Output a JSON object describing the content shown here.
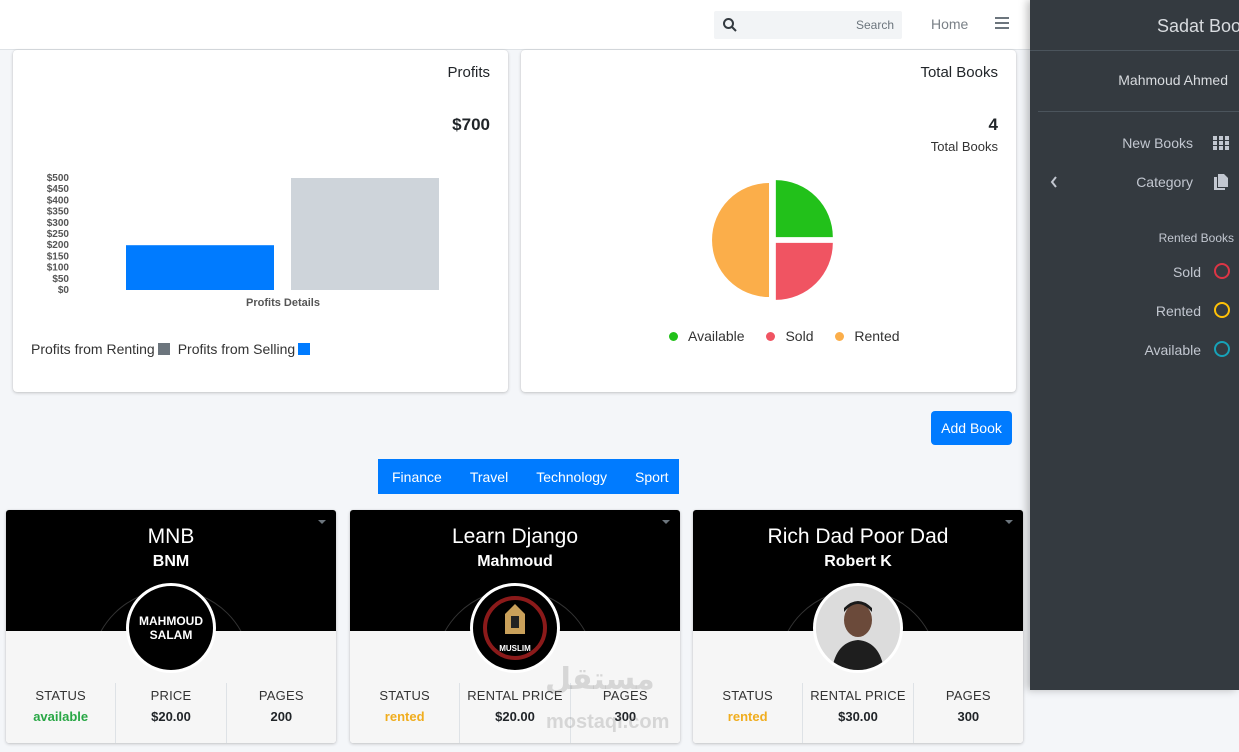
{
  "navbar": {
    "search_placeholder": "Search",
    "home_label": "Home",
    "menu_icon": "hamburger-icon"
  },
  "sidebar": {
    "brand": "Sadat Book",
    "user": "Mahmoud Ahmed",
    "items": [
      {
        "label": "New Books",
        "icon": "grid-icon"
      },
      {
        "label": "Category",
        "icon": "file-icon"
      }
    ],
    "header": "Rented Books",
    "status_items": [
      {
        "label": "Sold",
        "color": "#dc3545"
      },
      {
        "label": "Rented",
        "color": "#ffc107"
      },
      {
        "label": "Available",
        "color": "#17a2b8"
      }
    ]
  },
  "profits_card": {
    "title": "Profits",
    "value": "$700",
    "legend": [
      {
        "label": "Profits from Renting",
        "color": "#6c757d"
      },
      {
        "label": "Profits from Selling",
        "color": "#007bff"
      }
    ]
  },
  "total_card": {
    "title": "Total Books",
    "value": "4",
    "sub": "Total Books",
    "legend": [
      {
        "label": "Available",
        "color": "#22c11a"
      },
      {
        "label": "Sold",
        "color": "#f05462"
      },
      {
        "label": "Rented",
        "color": "#fbae4a"
      }
    ]
  },
  "chart_data": [
    {
      "type": "bar",
      "xlabel": "Profits Details",
      "ylabel": "",
      "categories": [
        "",
        ""
      ],
      "values": [
        200,
        500
      ],
      "colors": [
        "#007bff",
        "#ced4da"
      ],
      "yticks": [
        "$500",
        "$450",
        "$400",
        "$350",
        "$300",
        "$250",
        "$200",
        "$150",
        "$100",
        "$50",
        "$0"
      ],
      "ylim": [
        0,
        500
      ]
    },
    {
      "type": "pie",
      "labels": [
        "Available",
        "Sold",
        "Rented"
      ],
      "values": [
        1,
        1,
        2
      ],
      "colors": [
        "#22c11a",
        "#f05462",
        "#fbae4a"
      ]
    }
  ],
  "add_book_label": "Add Book",
  "categories": [
    "Finance",
    "Travel",
    "Technology",
    "Sport"
  ],
  "books": [
    {
      "title": "MNB",
      "author": "BNM",
      "status_label": "STATUS",
      "status": "available",
      "price_label": "PRICE",
      "price": "$20.00",
      "pages_label": "PAGES",
      "pages": "200",
      "avatar_text": "MAHMOUD SALAM"
    },
    {
      "title": "Learn Django",
      "author": "Mahmoud",
      "status_label": "STATUS",
      "status": "rented",
      "price_label": "RENTAL PRICE",
      "price": "$20.00",
      "pages_label": "PAGES",
      "pages": "300",
      "avatar_text": "MUSLIM"
    },
    {
      "title": "Rich Dad Poor Dad",
      "author": "Robert K",
      "status_label": "STATUS",
      "status": "rented",
      "price_label": "RENTAL PRICE",
      "price": "$30.00",
      "pages_label": "PAGES",
      "pages": "300",
      "avatar_text": ""
    }
  ],
  "watermark": {
    "line1": "مستقل",
    "line2": "mostaql.com"
  }
}
